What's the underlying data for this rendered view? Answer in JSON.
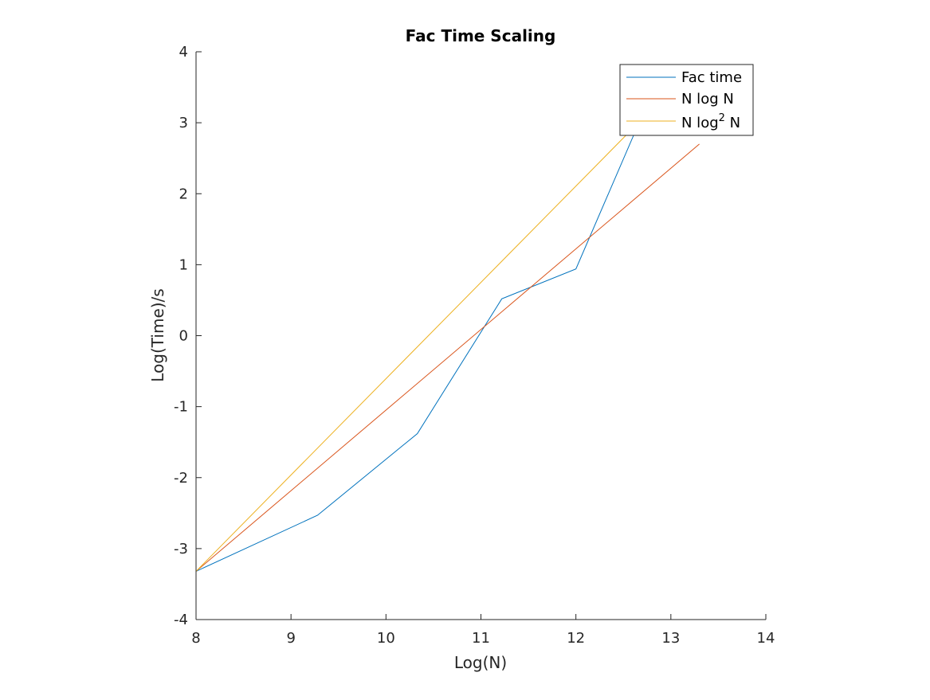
{
  "chart_data": {
    "type": "line",
    "title": "Fac Time Scaling",
    "xlabel": "Log(N)",
    "ylabel": "Log(Time)/s",
    "xlim": [
      8,
      14
    ],
    "ylim": [
      -4,
      4
    ],
    "xticks": [
      "8",
      "9",
      "10",
      "11",
      "12",
      "13",
      "14"
    ],
    "yticks": [
      "4",
      "3",
      "2",
      "1",
      "0",
      "-1",
      "-2",
      "-3",
      "-4"
    ],
    "grid": false,
    "legend_position": "top-right",
    "series": [
      {
        "name": "Fac time",
        "legend_text": "Fac time",
        "color": "#0072BD",
        "x": [
          8.0,
          9.28,
          10.33,
          11.22,
          12.0,
          12.62,
          13.1
        ],
        "y": [
          -3.32,
          -2.53,
          -1.38,
          0.52,
          0.94,
          2.86,
          3.6
        ]
      },
      {
        "name": "N log N",
        "legend_text": "N log N",
        "color": "#D95319",
        "x": [
          8.0,
          13.3
        ],
        "y": [
          -3.32,
          2.7
        ]
      },
      {
        "name": "N log2 N",
        "legend_text": "N log",
        "legend_sup": "2",
        "legend_suffix": " N",
        "color": "#EDB120",
        "x": [
          8.0,
          13.1
        ],
        "y": [
          -3.32,
          3.6
        ]
      }
    ]
  }
}
